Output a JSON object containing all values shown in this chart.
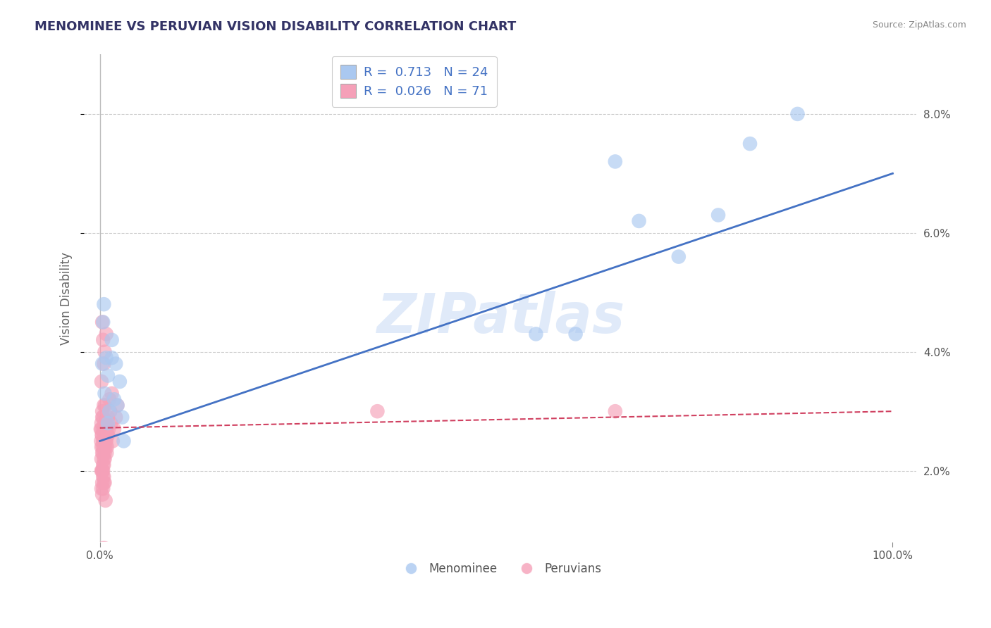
{
  "title": "MENOMINEE VS PERUVIAN VISION DISABILITY CORRELATION CHART",
  "source": "Source: ZipAtlas.com",
  "ylabel": "Vision Disability",
  "watermark": "ZIPatlas",
  "menominee_color": "#aac8f0",
  "peruvian_color": "#f5a0b8",
  "trend_blue": "#4472c4",
  "trend_pink": "#d04060",
  "menominee_x": [
    0.3,
    0.5,
    0.8,
    1.0,
    1.5,
    2.0,
    2.5,
    0.6,
    1.2,
    1.8,
    3.0,
    2.2,
    0.4,
    1.0,
    1.5,
    2.8,
    55,
    60,
    68,
    73,
    78,
    82,
    88,
    65
  ],
  "menominee_y": [
    3.8,
    4.8,
    3.9,
    3.6,
    4.2,
    3.8,
    3.5,
    3.3,
    3.0,
    3.2,
    2.5,
    3.1,
    4.5,
    2.8,
    3.9,
    2.9,
    4.3,
    4.3,
    6.2,
    5.6,
    6.3,
    7.5,
    8.0,
    7.2
  ],
  "peruvian_x": [
    0.1,
    0.15,
    0.2,
    0.25,
    0.3,
    0.35,
    0.4,
    0.45,
    0.5,
    0.55,
    0.6,
    0.65,
    0.7,
    0.75,
    0.8,
    0.85,
    0.9,
    0.95,
    1.0,
    1.1,
    1.2,
    1.3,
    1.4,
    1.5,
    1.6,
    1.8,
    2.0,
    2.2,
    0.2,
    0.3,
    0.4,
    0.5,
    0.6,
    0.7,
    0.8,
    0.9,
    1.0,
    0.3,
    0.4,
    0.5,
    0.2,
    0.3,
    0.5,
    0.7,
    0.4,
    0.6,
    0.8,
    0.3,
    0.5,
    0.2,
    0.4,
    0.6,
    0.3,
    0.5,
    0.7,
    0.2,
    0.4,
    0.3,
    0.5,
    0.6,
    0.2,
    0.4,
    0.3,
    0.5,
    0.2,
    0.3,
    0.4,
    35.0,
    0.6,
    65.0,
    0.5
  ],
  "peruvian_y": [
    2.7,
    2.5,
    2.8,
    2.6,
    3.0,
    2.4,
    2.9,
    2.7,
    2.5,
    2.8,
    2.6,
    3.1,
    2.4,
    2.7,
    2.5,
    2.3,
    2.8,
    2.6,
    2.9,
    2.7,
    3.2,
    3.0,
    2.8,
    3.3,
    2.5,
    2.7,
    2.9,
    3.1,
    2.2,
    2.0,
    1.9,
    2.1,
    2.3,
    2.5,
    2.7,
    2.4,
    2.6,
    1.8,
    2.0,
    2.2,
    2.7,
    2.9,
    3.1,
    2.8,
    4.2,
    4.0,
    4.3,
    4.5,
    3.8,
    3.5,
    1.7,
    1.8,
    1.6,
    1.9,
    1.5,
    2.0,
    2.1,
    2.3,
    2.4,
    2.2,
    1.7,
    2.5,
    2.0,
    1.8,
    2.4,
    2.6,
    2.3,
    3.0,
    2.7,
    3.0,
    0.7
  ],
  "blue_trend_x0": 0,
  "blue_trend_y0": 2.5,
  "blue_trend_x1": 100,
  "blue_trend_y1": 7.0,
  "pink_trend_x0": 0,
  "pink_trend_y0": 2.72,
  "pink_trend_x1": 100,
  "pink_trend_y1": 3.0,
  "xlim": [
    -2,
    103
  ],
  "ylim": [
    0.8,
    9.0
  ],
  "yticks": [
    2.0,
    4.0,
    6.0,
    8.0
  ],
  "xticks": [
    0,
    100
  ]
}
